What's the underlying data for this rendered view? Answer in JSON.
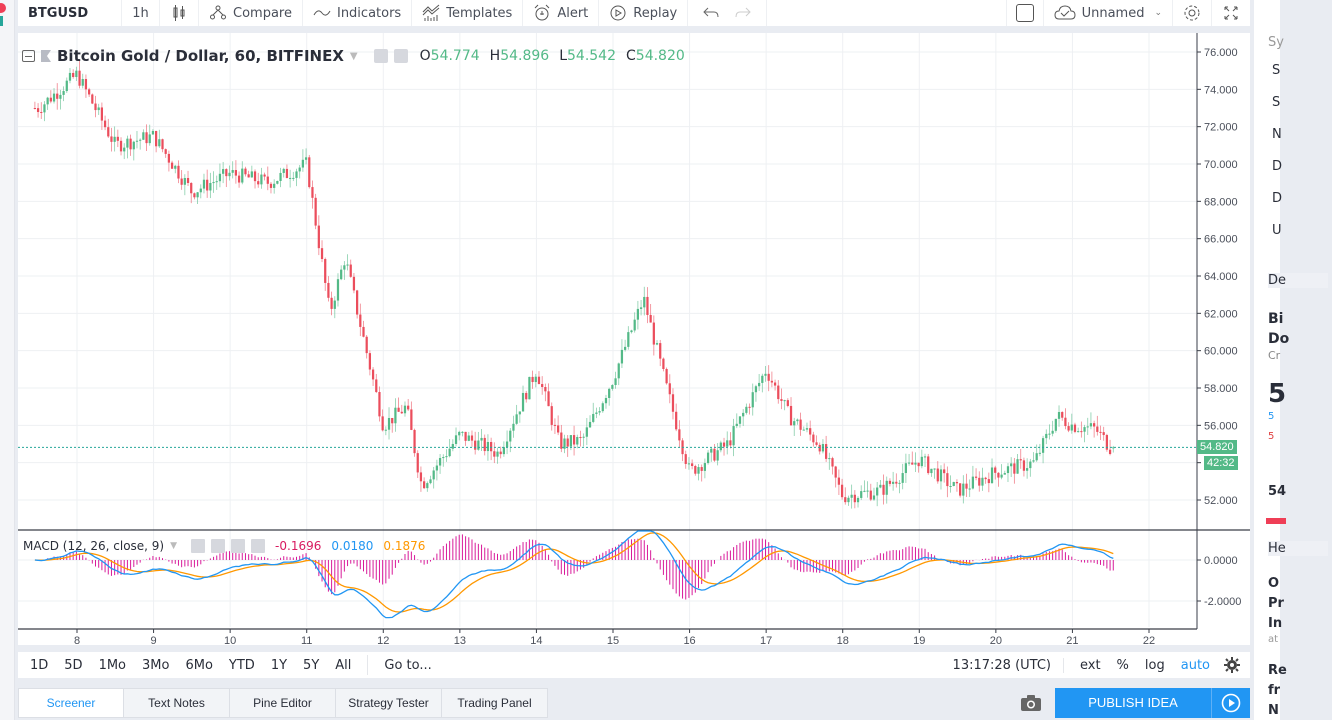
{
  "toolbar": {
    "symbol": "BTGUSD",
    "interval": "1h",
    "compare": "Compare",
    "indicators": "Indicators",
    "templates": "Templates",
    "alert": "Alert",
    "replay": "Replay",
    "layout_name": "Unnamed"
  },
  "legend": {
    "title": "Bitcoin Gold / Dollar, 60, BITFINEX",
    "o_label": "O",
    "o": "54.774",
    "h_label": "H",
    "h": "54.896",
    "l_label": "L",
    "l": "54.542",
    "c_label": "C",
    "c": "54.820"
  },
  "macd_legend": {
    "title": "MACD (12, 26, close, 9)",
    "hist": "-0.1696",
    "macd": "0.0180",
    "signal": "0.1876"
  },
  "price_axis": {
    "last_price": "54.820",
    "countdown": "42:32"
  },
  "range_bar": {
    "buttons": [
      "1D",
      "5D",
      "1Mo",
      "3Mo",
      "6Mo",
      "YTD",
      "1Y",
      "5Y",
      "All"
    ],
    "goto": "Go to...",
    "clock": "13:17:28 (UTC)",
    "ext": "ext",
    "percent": "%",
    "log": "log",
    "auto": "auto"
  },
  "bottom_tabs": [
    "Screener",
    "Text Notes",
    "Pine Editor",
    "Strategy Tester",
    "Trading Panel"
  ],
  "publish": {
    "label": "PUBLISH IDEA"
  },
  "right_panel": {
    "rows": [
      "Sy",
      "S",
      "S",
      "N",
      "D",
      "D",
      "U",
      "De",
      "Bi",
      "Do",
      "Cr",
      "5",
      "5",
      "5",
      "54",
      "He",
      "O",
      "Pr",
      "In",
      "at",
      "Re",
      "fr",
      "N"
    ]
  },
  "colors": {
    "up": "#53b987",
    "down": "#eb4d5c",
    "macd_line": "#2196f3",
    "signal_line": "#ff9800",
    "histogram": "#d81b9a",
    "accent": "#2196f3"
  },
  "chart_data": [
    {
      "type": "candlestick",
      "title": "Bitcoin Gold / Dollar, 60, BITFINEX",
      "xlabel": "",
      "ylabel": "",
      "x_ticks": [
        "8",
        "9",
        "10",
        "11",
        "12",
        "13",
        "14",
        "15",
        "16",
        "17",
        "18",
        "19",
        "20",
        "21",
        "22"
      ],
      "y_ticks": [
        52,
        54,
        56,
        58,
        60,
        62,
        64,
        66,
        68,
        70,
        72,
        74,
        76
      ],
      "ylim": [
        50.5,
        77
      ],
      "last": 54.82,
      "ohlc_last": {
        "open": 54.774,
        "high": 54.896,
        "low": 54.542,
        "close": 54.82
      },
      "series_close_by_day": {
        "x": [
          "7.5",
          "8",
          "8.5",
          "9",
          "9.5",
          "10",
          "10.5",
          "11",
          "11.3",
          "11.5",
          "12",
          "12.3",
          "12.5",
          "13",
          "13.5",
          "14",
          "14.3",
          "14.6",
          "15",
          "15.4",
          "15.7",
          "16",
          "16.5",
          "17",
          "17.3",
          "17.7",
          "18",
          "18.5",
          "19",
          "19.5",
          "20",
          "20.5",
          "20.8",
          "21",
          "21.3",
          "21.5"
        ],
        "values": [
          73,
          74.8,
          71,
          71.5,
          68.5,
          69.5,
          69,
          70,
          62,
          65,
          56,
          57,
          52.8,
          55.5,
          54.5,
          59,
          55,
          55.2,
          58.5,
          62.8,
          58,
          53.5,
          55,
          59,
          56.5,
          55,
          52.2,
          52.5,
          54.2,
          52.5,
          53.5,
          54,
          56.5,
          56,
          55.8,
          54.8
        ]
      },
      "grid": true
    },
    {
      "type": "line",
      "title": "MACD (12, 26, close, 9)",
      "y_ticks": [
        0.0,
        -2.0
      ],
      "series": [
        {
          "name": "MACD",
          "color": "#2196f3",
          "last": 0.018
        },
        {
          "name": "Signal",
          "color": "#ff9800",
          "last": 0.1876
        },
        {
          "name": "Histogram",
          "color": "#d81b9a",
          "last": -0.1696
        }
      ],
      "grid": true
    }
  ]
}
